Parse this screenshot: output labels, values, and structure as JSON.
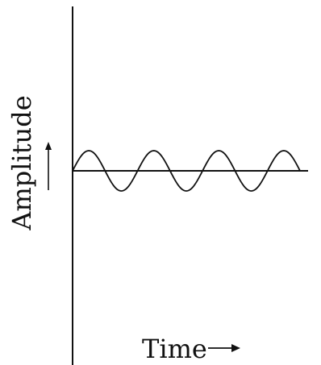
{
  "diagram": {
    "y_axis_label": "Amplitude",
    "x_axis_label": "Time",
    "wave": {
      "type": "sine",
      "cycles": 3.5,
      "amplitude": 1
    }
  }
}
